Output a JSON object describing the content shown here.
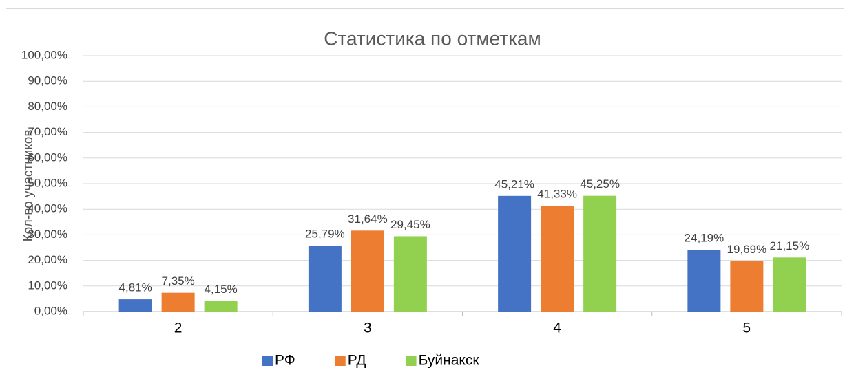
{
  "chart_data": {
    "type": "bar",
    "title": "Статистика по отметкам",
    "y_label": "Кол-во участников",
    "categories": [
      "2",
      "3",
      "4",
      "5"
    ],
    "series": [
      {
        "name": "РФ",
        "color": "#4472c4",
        "values": [
          4.81,
          25.79,
          45.21,
          24.19
        ],
        "value_labels": [
          "4,81%",
          "25,79%",
          "45,21%",
          "24,19%"
        ]
      },
      {
        "name": "РД",
        "color": "#ed7d31",
        "values": [
          7.35,
          31.64,
          41.33,
          19.69
        ],
        "value_labels": [
          "7,35%",
          "31,64%",
          "41,33%",
          "19,69%"
        ]
      },
      {
        "name": "Буйнакск",
        "color": "#92d050",
        "values": [
          4.15,
          29.45,
          45.25,
          21.15
        ],
        "value_labels": [
          "4,15%",
          "29,45%",
          "45,25%",
          "21,15%"
        ]
      }
    ],
    "ylim": [
      0,
      100
    ],
    "yticks": [
      {
        "value": 0,
        "label": "0,00%"
      },
      {
        "value": 10,
        "label": "10,00%"
      },
      {
        "value": 20,
        "label": "20,00%"
      },
      {
        "value": 30,
        "label": "30,00%"
      },
      {
        "value": 40,
        "label": "40,00%"
      },
      {
        "value": 50,
        "label": "50,00%"
      },
      {
        "value": 60,
        "label": "60,00%"
      },
      {
        "value": 70,
        "label": "70,00%"
      },
      {
        "value": 80,
        "label": "80,00%"
      },
      {
        "value": 90,
        "label": "90,00%"
      },
      {
        "value": 100,
        "label": "100,00%"
      }
    ],
    "grid": true,
    "legend": "bottom"
  }
}
